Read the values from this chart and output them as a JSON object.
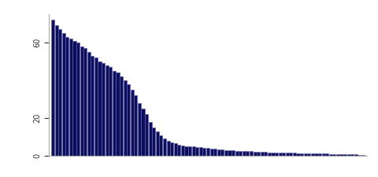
{
  "n_tissues": 87,
  "bar_color": "#0d0d5e",
  "bar_edge_color": "#6666aa",
  "background_color": "#ffffff",
  "ylim": [
    0,
    75
  ],
  "yticks": [
    0,
    20,
    60
  ],
  "ytick_labels": [
    "0",
    "20",
    "60"
  ],
  "values": [
    72,
    69,
    67,
    65,
    63,
    62,
    61,
    60,
    58,
    57,
    55,
    53,
    52,
    50,
    49,
    48,
    47,
    45,
    44,
    42,
    40,
    38,
    35,
    32,
    28,
    25,
    22,
    18,
    15,
    13,
    11,
    9,
    8,
    7,
    6.5,
    6,
    5.5,
    5.2,
    5,
    4.8,
    4.6,
    4.4,
    4.2,
    4.0,
    3.8,
    3.6,
    3.4,
    3.2,
    3.0,
    2.9,
    2.8,
    2.7,
    2.6,
    2.5,
    2.4,
    2.3,
    2.2,
    2.1,
    2.0,
    1.9,
    1.85,
    1.8,
    1.75,
    1.7,
    1.65,
    1.6,
    1.55,
    1.5,
    1.45,
    1.4,
    1.35,
    1.3,
    1.25,
    1.2,
    1.15,
    1.1,
    1.05,
    1.0,
    0.95,
    0.9,
    0.85,
    0.8,
    0.75,
    0.7,
    0.65,
    0.6,
    0.55
  ]
}
